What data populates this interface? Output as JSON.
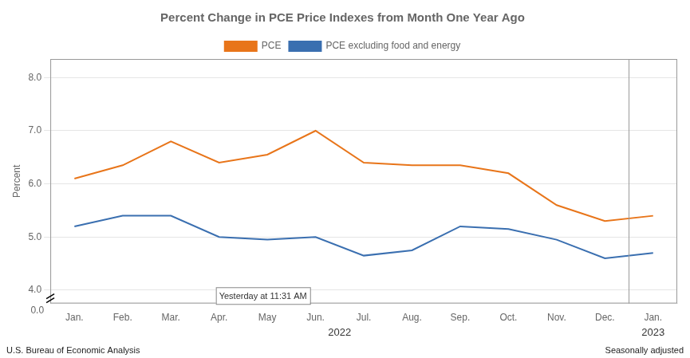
{
  "chart_data": {
    "type": "line",
    "title": "Percent Change in PCE Price Indexes from Month One Year Ago",
    "y_label": "Percent",
    "categories": [
      "Jan.",
      "Feb.",
      "Mar.",
      "Apr.",
      "May",
      "Jun.",
      "Jul.",
      "Aug.",
      "Sep.",
      "Oct.",
      "Nov.",
      "Dec.",
      "Jan."
    ],
    "x_groups": [
      {
        "label": "2022",
        "count": 12
      },
      {
        "label": "2023",
        "count": 1
      }
    ],
    "series": [
      {
        "name": "PCE",
        "color": "#E8751A",
        "values": [
          6.1,
          6.35,
          6.8,
          6.4,
          6.55,
          7.0,
          6.4,
          6.35,
          6.35,
          6.2,
          5.6,
          5.3,
          5.4
        ]
      },
      {
        "name": "PCE excluding food and energy",
        "color": "#3A6FB0",
        "values": [
          5.2,
          5.4,
          5.4,
          5.0,
          4.95,
          5.0,
          4.65,
          4.75,
          5.2,
          5.15,
          4.95,
          4.6,
          4.7
        ]
      }
    ],
    "ylim": [
      3.75,
      8.35
    ],
    "yticks": [
      {
        "value": 4.0,
        "label": "4.0"
      },
      {
        "value": 5.0,
        "label": "5.0"
      },
      {
        "value": 6.0,
        "label": "6.0"
      },
      {
        "value": 7.0,
        "label": "7.0"
      },
      {
        "value": 8.0,
        "label": "8.0"
      }
    ],
    "y_break_label": "0.0",
    "grid": true,
    "legend": "top",
    "marker": "none",
    "annotations": [
      {
        "text": "Yesterday at 11:31 AM",
        "x": 3,
        "y": 3.8
      }
    ],
    "footer_left": "U.S. Bureau of Economic Analysis",
    "footer_right": "Seasonally adjusted"
  }
}
